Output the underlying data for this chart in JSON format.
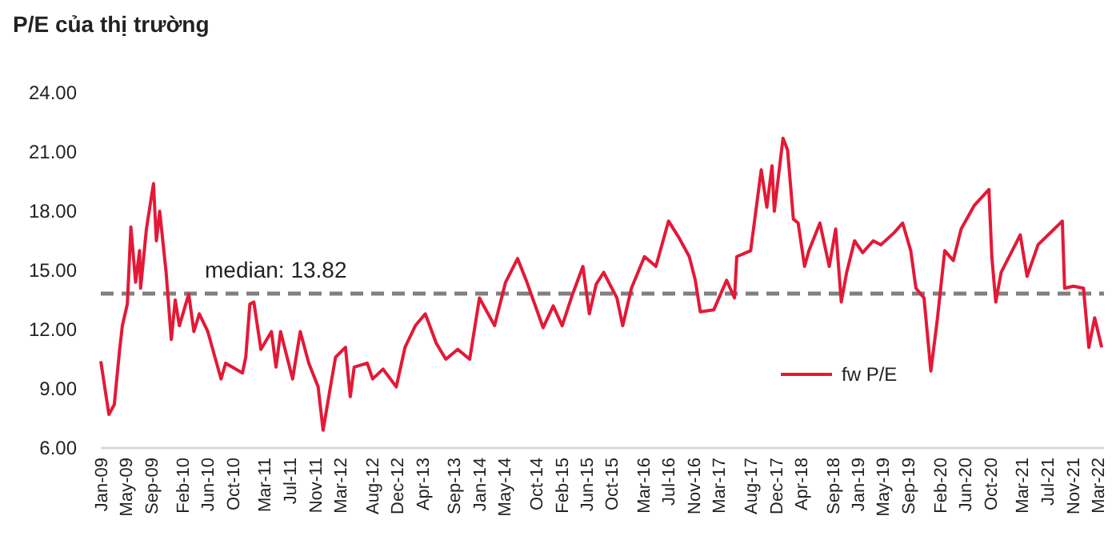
{
  "chart_data": {
    "type": "line",
    "title": "P/E của thị trường",
    "x": [
      "2009-01-01",
      "2009-02-09",
      "2009-03-07",
      "2009-04-01",
      "2009-04-15",
      "2009-05-09",
      "2009-05-26",
      "2009-06-18",
      "2009-07-07",
      "2009-07-12",
      "2009-08-09",
      "2009-09-12",
      "2009-09-26",
      "2009-10-12",
      "2009-11-12",
      "2009-12-07",
      "2009-12-26",
      "2010-01-15",
      "2010-03-01",
      "2010-03-26",
      "2010-04-21",
      "2010-06-01",
      "2010-08-04",
      "2010-08-26",
      "2010-11-15",
      "2010-12-01",
      "2010-12-21",
      "2011-01-09",
      "2011-02-12",
      "2011-04-04",
      "2011-04-26",
      "2011-05-18",
      "2011-07-15",
      "2011-08-21",
      "2011-10-01",
      "2011-11-15",
      "2011-12-09",
      "2012-01-15",
      "2012-02-07",
      "2012-03-26",
      "2012-04-18",
      "2012-05-07",
      "2012-07-09",
      "2012-08-04",
      "2012-09-23",
      "2012-11-26",
      "2013-01-07",
      "2013-02-26",
      "2013-04-15",
      "2013-06-07",
      "2013-07-23",
      "2013-09-18",
      "2013-11-15",
      "2014-01-01",
      "2014-03-15",
      "2014-05-07",
      "2014-07-04",
      "2014-08-18",
      "2014-11-04",
      "2014-12-23",
      "2015-02-04",
      "2015-03-23",
      "2015-05-15",
      "2015-06-15",
      "2015-07-18",
      "2015-08-23",
      "2015-10-26",
      "2015-11-23",
      "2016-01-04",
      "2016-03-07",
      "2016-05-01",
      "2016-07-01",
      "2016-08-18",
      "2016-10-09",
      "2016-11-07",
      "2016-12-01",
      "2017-02-04",
      "2017-04-07",
      "2017-05-15",
      "2017-05-26",
      "2017-08-01",
      "2017-09-21",
      "2017-10-18",
      "2017-11-12",
      "2017-11-23",
      "2018-01-04",
      "2018-01-26",
      "2018-02-23",
      "2018-03-18",
      "2018-04-18",
      "2018-05-09",
      "2018-07-01",
      "2018-08-15",
      "2018-09-15",
      "2018-10-12",
      "2018-11-07",
      "2018-12-15",
      "2019-01-23",
      "2019-03-15",
      "2019-04-21",
      "2019-06-23",
      "2019-08-04",
      "2019-09-12",
      "2019-10-07",
      "2019-11-15",
      "2019-12-18",
      "2020-01-18",
      "2020-02-23",
      "2020-04-04",
      "2020-05-12",
      "2020-07-15",
      "2020-09-23",
      "2020-10-07",
      "2020-10-26",
      "2020-11-21",
      "2021-02-21",
      "2021-03-26",
      "2021-05-18",
      "2021-08-04",
      "2021-09-12",
      "2021-09-23",
      "2021-11-04",
      "2021-12-23",
      "2022-01-18",
      "2022-02-15",
      "2022-03-21"
    ],
    "series": [
      {
        "name": "fw P/E",
        "color": "#e31937",
        "values": [
          10.4,
          7.7,
          8.2,
          10.9,
          12.2,
          13.3,
          17.2,
          14.4,
          16.0,
          14.1,
          17.1,
          19.4,
          16.5,
          18.0,
          14.9,
          11.5,
          13.5,
          12.2,
          13.8,
          11.9,
          12.8,
          11.9,
          9.5,
          10.3,
          9.8,
          10.6,
          13.3,
          13.4,
          11.0,
          11.9,
          10.1,
          11.9,
          9.5,
          11.9,
          10.3,
          9.1,
          6.9,
          9.2,
          10.6,
          11.1,
          8.6,
          10.1,
          10.3,
          9.5,
          10.0,
          9.1,
          11.1,
          12.2,
          12.8,
          11.3,
          10.5,
          11.0,
          10.5,
          13.6,
          12.2,
          14.4,
          15.6,
          14.4,
          12.1,
          13.2,
          12.2,
          13.7,
          15.2,
          12.8,
          14.3,
          14.9,
          13.6,
          12.2,
          14.1,
          15.7,
          15.2,
          17.5,
          16.7,
          15.7,
          14.5,
          12.9,
          13.0,
          14.5,
          13.6,
          15.7,
          16.0,
          20.1,
          18.2,
          20.3,
          18.0,
          21.7,
          21.1,
          17.6,
          17.4,
          15.2,
          16.0,
          17.4,
          15.2,
          17.1,
          13.4,
          14.9,
          16.5,
          15.9,
          16.5,
          16.3,
          16.9,
          17.4,
          16.0,
          14.1,
          13.6,
          9.9,
          12.5,
          16.0,
          15.5,
          17.1,
          18.3,
          19.1,
          15.7,
          13.4,
          14.9,
          16.8,
          14.7,
          16.3,
          17.1,
          17.5,
          14.1,
          14.2,
          14.1,
          11.1,
          12.6,
          11.1
        ]
      }
    ],
    "xlim": [
      "2009-01-01",
      "2022-04-01"
    ],
    "xticks": [
      {
        "value": "2009-01-01",
        "label": "Jan-09"
      },
      {
        "value": "2009-05-01",
        "label": "May-09"
      },
      {
        "value": "2009-09-01",
        "label": "Sep-09"
      },
      {
        "value": "2010-02-01",
        "label": "Feb-10"
      },
      {
        "value": "2010-06-01",
        "label": "Jun-10"
      },
      {
        "value": "2010-10-01",
        "label": "Oct-10"
      },
      {
        "value": "2011-03-01",
        "label": "Mar-11"
      },
      {
        "value": "2011-07-01",
        "label": "Jul-11"
      },
      {
        "value": "2011-11-01",
        "label": "Nov-11"
      },
      {
        "value": "2012-03-01",
        "label": "Mar-12"
      },
      {
        "value": "2012-08-01",
        "label": "Aug-12"
      },
      {
        "value": "2012-12-01",
        "label": "Dec-12"
      },
      {
        "value": "2013-04-01",
        "label": "Apr-13"
      },
      {
        "value": "2013-09-01",
        "label": "Sep-13"
      },
      {
        "value": "2014-01-01",
        "label": "Jan-14"
      },
      {
        "value": "2014-05-01",
        "label": "May-14"
      },
      {
        "value": "2014-10-01",
        "label": "Oct-14"
      },
      {
        "value": "2015-02-01",
        "label": "Feb-15"
      },
      {
        "value": "2015-06-01",
        "label": "Jun-15"
      },
      {
        "value": "2015-10-01",
        "label": "Oct-15"
      },
      {
        "value": "2016-03-01",
        "label": "Mar-16"
      },
      {
        "value": "2016-07-01",
        "label": "Jul-16"
      },
      {
        "value": "2016-11-01",
        "label": "Nov-16"
      },
      {
        "value": "2017-03-01",
        "label": "Mar-17"
      },
      {
        "value": "2017-08-01",
        "label": "Aug-17"
      },
      {
        "value": "2017-12-01",
        "label": "Dec-17"
      },
      {
        "value": "2018-04-01",
        "label": "Apr-18"
      },
      {
        "value": "2018-09-01",
        "label": "Sep-18"
      },
      {
        "value": "2019-01-01",
        "label": "Jan-19"
      },
      {
        "value": "2019-05-01",
        "label": "May-19"
      },
      {
        "value": "2019-09-01",
        "label": "Sep-19"
      },
      {
        "value": "2020-02-01",
        "label": "Feb-20"
      },
      {
        "value": "2020-06-01",
        "label": "Jun-20"
      },
      {
        "value": "2020-10-01",
        "label": "Oct-20"
      },
      {
        "value": "2021-03-01",
        "label": "Mar-21"
      },
      {
        "value": "2021-07-01",
        "label": "Jul-21"
      },
      {
        "value": "2021-11-01",
        "label": "Nov-21"
      },
      {
        "value": "2022-03-01",
        "label": "Mar-22"
      }
    ],
    "ylim": [
      6,
      24
    ],
    "yticks": [
      {
        "value": 6,
        "label": "6.00"
      },
      {
        "value": 9,
        "label": "9.00"
      },
      {
        "value": 12,
        "label": "12.00"
      },
      {
        "value": 15,
        "label": "15.00"
      },
      {
        "value": 18,
        "label": "18.00"
      },
      {
        "value": 21,
        "label": "21.00"
      },
      {
        "value": 24,
        "label": "24.00"
      }
    ],
    "ref_lines": [
      {
        "axis": "y",
        "value": 13.82,
        "label": "median: 13.82",
        "color": "#808080",
        "line_style": "dashed"
      }
    ],
    "legend": "bottom right",
    "line_style": "solid"
  }
}
